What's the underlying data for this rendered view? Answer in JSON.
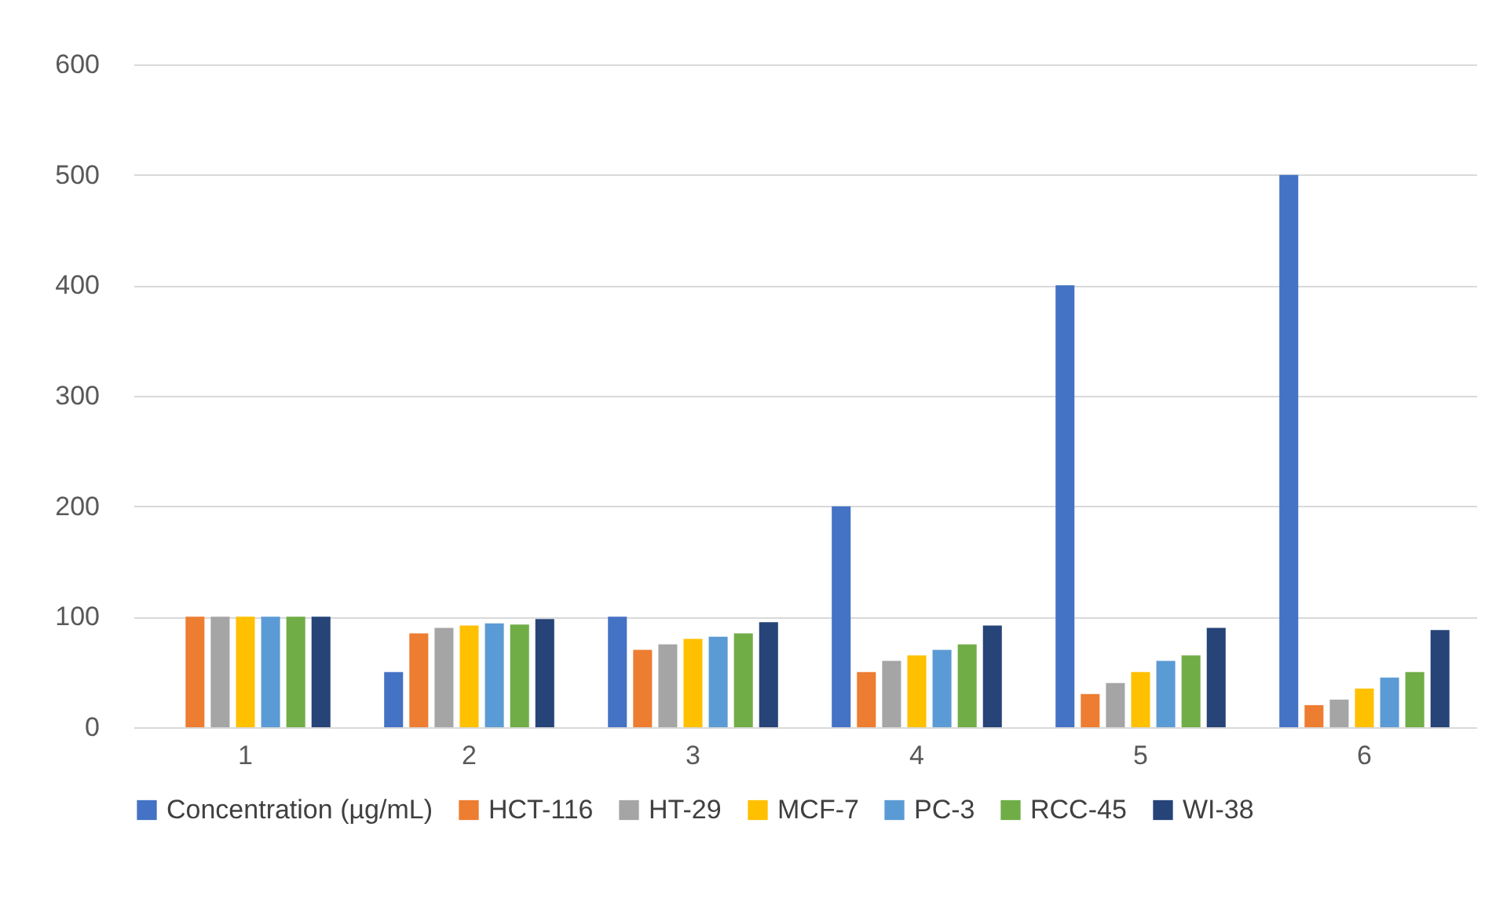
{
  "chart_data": {
    "type": "bar",
    "categories": [
      "1",
      "2",
      "3",
      "4",
      "5",
      "6"
    ],
    "series": [
      {
        "name": "Concentration (µg/mL)",
        "color": "#4472c4",
        "values": [
          0,
          50,
          100,
          200,
          400,
          500
        ]
      },
      {
        "name": "HCT-116",
        "color": "#ed7d31",
        "values": [
          100,
          85,
          70,
          50,
          30,
          20
        ]
      },
      {
        "name": "HT-29",
        "color": "#a5a5a5",
        "values": [
          100,
          90,
          75,
          60,
          40,
          25
        ]
      },
      {
        "name": "MCF-7",
        "color": "#ffc000",
        "values": [
          100,
          92,
          80,
          65,
          50,
          35
        ]
      },
      {
        "name": "PC-3",
        "color": "#5b9bd5",
        "values": [
          100,
          94,
          82,
          70,
          60,
          45
        ]
      },
      {
        "name": "RCC-45",
        "color": "#70ad47",
        "values": [
          100,
          93,
          85,
          75,
          65,
          50
        ]
      },
      {
        "name": "WI-38",
        "color": "#264478",
        "values": [
          100,
          98,
          95,
          92,
          90,
          88
        ]
      }
    ],
    "ylim": [
      0,
      600
    ],
    "yticks": [
      0,
      100,
      200,
      300,
      400,
      500,
      600
    ],
    "grid": "y",
    "legend": "bottom"
  }
}
